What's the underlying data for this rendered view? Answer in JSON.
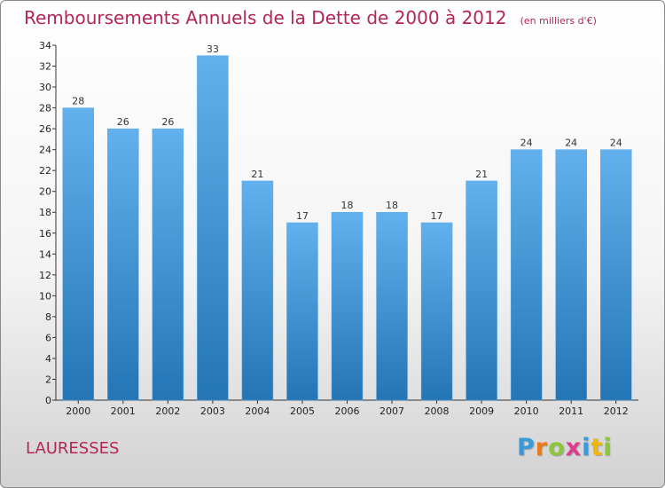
{
  "title": "Remboursements Annuels de la Dette de 2000 à 2012",
  "unit_note": "(en milliers d'€)",
  "commune": "LAURESSES",
  "logo": {
    "letters": [
      "P",
      "r",
      "o",
      "x",
      "i",
      "t",
      "i"
    ],
    "colors": [
      "#3a9ad9",
      "#e87a1e",
      "#8cc63f",
      "#e03a8c",
      "#3a9ad9",
      "#f2b705",
      "#8cc63f"
    ]
  },
  "colors": {
    "bar_top": "#62b1ee",
    "bar_bottom": "#2475b5",
    "title": "#b4255a"
  },
  "chart_data": {
    "type": "bar",
    "categories": [
      "2000",
      "2001",
      "2002",
      "2003",
      "2004",
      "2005",
      "2006",
      "2007",
      "2008",
      "2009",
      "2010",
      "2011",
      "2012"
    ],
    "values": [
      28,
      26,
      26,
      33,
      21,
      17,
      18,
      18,
      17,
      21,
      24,
      24,
      24
    ],
    "ylim": [
      0,
      34
    ],
    "yticks": [
      0,
      2,
      4,
      6,
      8,
      10,
      12,
      14,
      16,
      18,
      20,
      22,
      24,
      26,
      28,
      30,
      32,
      34
    ],
    "grid": false,
    "data_labels": true
  }
}
